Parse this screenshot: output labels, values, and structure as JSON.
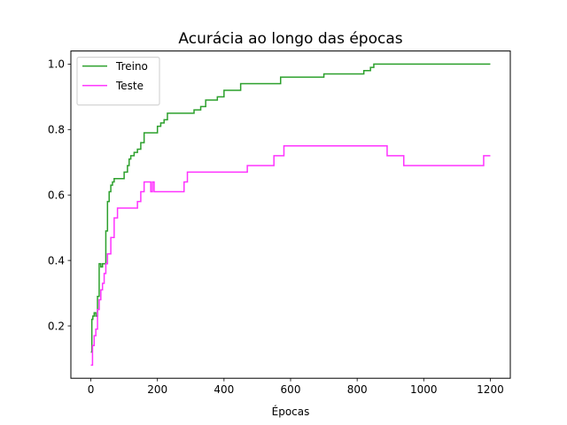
{
  "chart_data": {
    "type": "line",
    "title": "Acurácia ao longo das épocas",
    "xlabel": "Épocas",
    "ylabel": "",
    "xlim": [
      -60,
      1260
    ],
    "ylim": [
      0.04,
      1.04
    ],
    "xticks": [
      0,
      200,
      400,
      600,
      800,
      1000,
      1200
    ],
    "xtick_labels": [
      "0",
      "200",
      "400",
      "600",
      "800",
      "1000",
      "1200"
    ],
    "yticks": [
      0.2,
      0.4,
      0.6,
      0.8,
      1.0
    ],
    "ytick_labels": [
      "0.2",
      "0.4",
      "0.6",
      "0.8",
      "1.0"
    ],
    "grid": false,
    "legend_position": "top-left",
    "series": [
      {
        "name": "Treino",
        "color": "#2ca02c",
        "step": true,
        "x": [
          0,
          3,
          6,
          10,
          15,
          20,
          25,
          30,
          35,
          40,
          45,
          50,
          55,
          60,
          65,
          70,
          80,
          100,
          110,
          115,
          120,
          130,
          140,
          150,
          160,
          180,
          200,
          210,
          220,
          230,
          250,
          270,
          290,
          310,
          330,
          345,
          360,
          380,
          400,
          430,
          450,
          480,
          520,
          570,
          600,
          650,
          700,
          750,
          800,
          820,
          840,
          850,
          900,
          1000,
          1100,
          1200
        ],
        "y": [
          0.12,
          0.22,
          0.23,
          0.24,
          0.23,
          0.29,
          0.39,
          0.38,
          0.39,
          0.39,
          0.49,
          0.58,
          0.61,
          0.63,
          0.64,
          0.65,
          0.65,
          0.67,
          0.69,
          0.71,
          0.72,
          0.73,
          0.74,
          0.76,
          0.79,
          0.79,
          0.81,
          0.82,
          0.83,
          0.85,
          0.85,
          0.85,
          0.85,
          0.86,
          0.87,
          0.89,
          0.89,
          0.9,
          0.92,
          0.92,
          0.94,
          0.94,
          0.94,
          0.96,
          0.96,
          0.96,
          0.97,
          0.97,
          0.97,
          0.98,
          0.99,
          1.0,
          1.0,
          1.0,
          1.0,
          1.0
        ]
      },
      {
        "name": "Teste",
        "color": "#ff33ff",
        "step": true,
        "x": [
          0,
          5,
          10,
          15,
          20,
          25,
          30,
          35,
          40,
          45,
          50,
          60,
          70,
          80,
          100,
          140,
          150,
          160,
          170,
          180,
          185,
          190,
          200,
          250,
          280,
          290,
          300,
          350,
          400,
          470,
          500,
          550,
          580,
          600,
          700,
          800,
          890,
          900,
          940,
          1000,
          1100,
          1180,
          1200
        ],
        "y": [
          0.08,
          0.14,
          0.17,
          0.19,
          0.25,
          0.28,
          0.31,
          0.33,
          0.36,
          0.39,
          0.42,
          0.47,
          0.53,
          0.56,
          0.56,
          0.58,
          0.61,
          0.64,
          0.64,
          0.61,
          0.64,
          0.61,
          0.61,
          0.61,
          0.64,
          0.67,
          0.67,
          0.67,
          0.67,
          0.69,
          0.69,
          0.72,
          0.75,
          0.75,
          0.75,
          0.75,
          0.72,
          0.72,
          0.69,
          0.69,
          0.69,
          0.72,
          0.72
        ]
      }
    ]
  }
}
